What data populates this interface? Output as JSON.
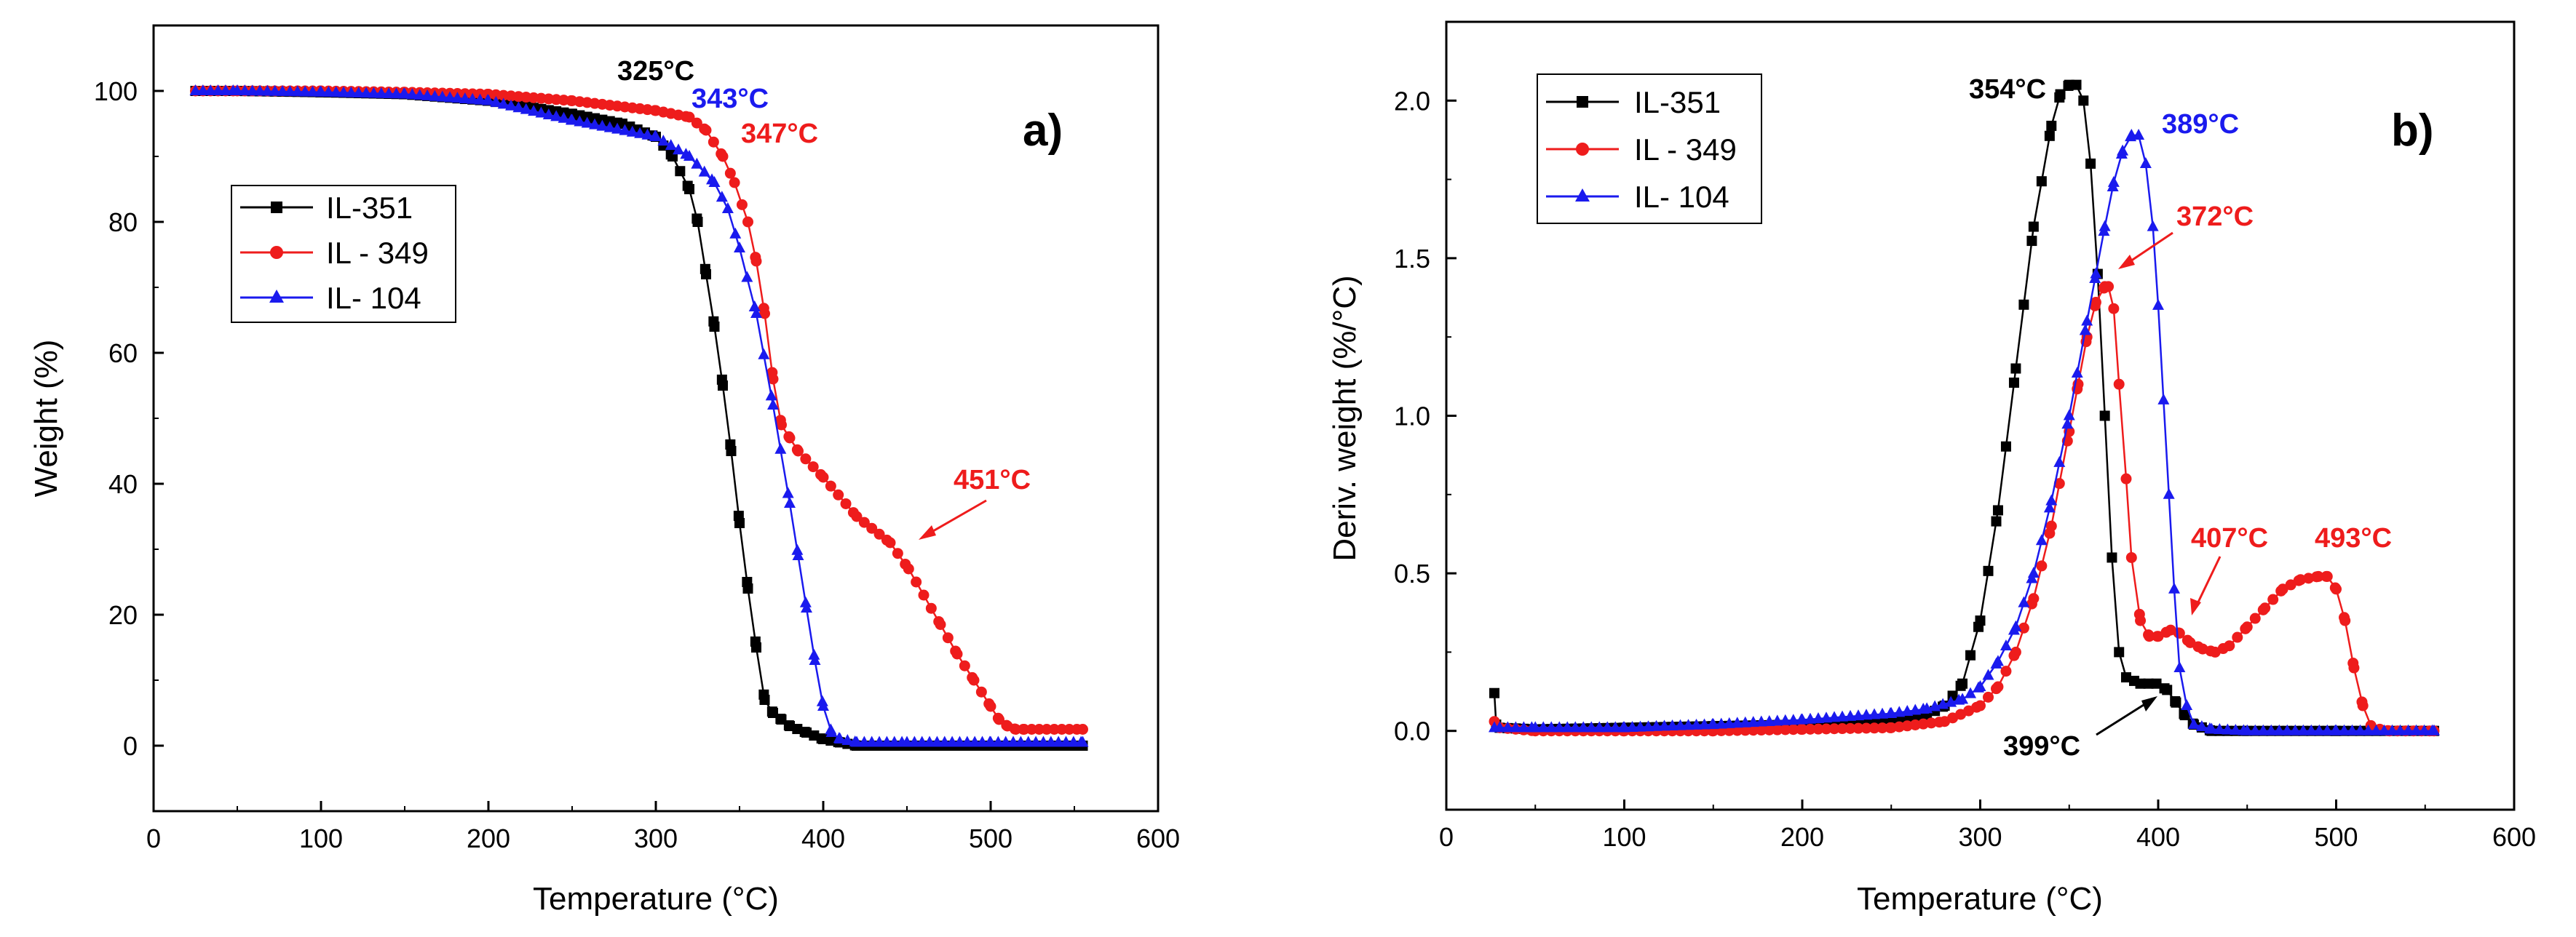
{
  "chart_data": [
    {
      "type": "scatter",
      "id": "a",
      "panel_label": "a)",
      "xlabel": "Temperature (°C)",
      "ylabel": "Weight (%)",
      "xlim": [
        0,
        600
      ],
      "ylim": [
        -10,
        110
      ],
      "xticks": [
        0,
        100,
        200,
        300,
        400,
        500,
        600
      ],
      "yticks": [
        0,
        20,
        40,
        60,
        80,
        100
      ],
      "legend_position": "middle-left",
      "series": [
        {
          "name": "IL-351",
          "color": "#000000",
          "marker": "square",
          "x": [
            25,
            50,
            100,
            150,
            200,
            250,
            280,
            300,
            310,
            320,
            325,
            330,
            335,
            340,
            345,
            350,
            355,
            360,
            365,
            370,
            375,
            380,
            390,
            400,
            410,
            420,
            450,
            500,
            555
          ],
          "y": [
            100,
            100,
            99.8,
            99.5,
            98.5,
            96.5,
            95,
            93,
            90,
            85,
            80,
            72,
            64,
            55,
            45,
            34,
            24,
            15,
            7,
            5,
            4,
            3,
            2,
            1,
            0.5,
            0,
            0,
            0,
            0
          ]
        },
        {
          "name": "IL - 349",
          "color": "#ee1c1c",
          "marker": "circle",
          "x": [
            25,
            50,
            100,
            150,
            200,
            250,
            300,
            320,
            330,
            340,
            347,
            355,
            360,
            365,
            370,
            375,
            380,
            385,
            400,
            420,
            440,
            451,
            460,
            470,
            480,
            490,
            500,
            505,
            510,
            515,
            520,
            555
          ],
          "y": [
            100,
            100,
            100,
            99.8,
            99.5,
            98.5,
            97,
            96,
            94,
            90,
            86,
            80,
            74,
            66,
            56,
            49,
            47,
            45,
            41,
            35,
            31,
            27,
            23,
            18.5,
            14,
            10,
            6,
            4,
            3,
            2.5,
            2.5,
            2.5
          ]
        },
        {
          "name": "IL- 104",
          "color": "#1a1aee",
          "marker": "triangle",
          "x": [
            25,
            50,
            100,
            150,
            200,
            250,
            300,
            320,
            335,
            343,
            350,
            360,
            370,
            380,
            385,
            390,
            395,
            400,
            405,
            410,
            420,
            450,
            500,
            555
          ],
          "y": [
            100,
            100,
            99.8,
            99.5,
            98.5,
            95.5,
            93,
            90,
            86,
            82,
            76,
            66,
            52,
            37,
            29,
            21,
            13,
            6,
            2,
            1,
            0.5,
            0.5,
            0.5,
            0.5
          ]
        }
      ],
      "annotations": [
        {
          "text": "325°C",
          "color": "#000000"
        },
        {
          "text": "343°C",
          "color": "#1a1aee"
        },
        {
          "text": "347°C",
          "color": "#ee1c1c"
        },
        {
          "text": "451°C",
          "color": "#ee1c1c"
        }
      ]
    },
    {
      "type": "scatter",
      "id": "b",
      "panel_label": "b)",
      "xlabel": "Temperature (°C)",
      "ylabel": "Deriv. weight (%/°C)",
      "xlim": [
        0,
        600
      ],
      "ylim": [
        -0.25,
        2.25
      ],
      "xticks": [
        0,
        100,
        200,
        300,
        400,
        500,
        600
      ],
      "yticks": [
        0.0,
        0.5,
        1.0,
        1.5,
        2.0
      ],
      "ytick_labels": [
        "0.0",
        "0.5",
        "1.0",
        "1.5",
        "2.0"
      ],
      "legend_position": "top-left",
      "series": [
        {
          "name": "IL-351",
          "color": "#000000",
          "marker": "square",
          "x": [
            27,
            28,
            30,
            50,
            100,
            150,
            200,
            250,
            270,
            280,
            290,
            300,
            310,
            320,
            330,
            340,
            345,
            350,
            354,
            358,
            362,
            366,
            370,
            374,
            378,
            382,
            390,
            399,
            405,
            410,
            415,
            420,
            430,
            450,
            500,
            555
          ],
          "y": [
            0.12,
            0.02,
            0.01,
            0.005,
            0.01,
            0.015,
            0.02,
            0.04,
            0.05,
            0.08,
            0.15,
            0.35,
            0.7,
            1.15,
            1.6,
            1.92,
            2.02,
            2.05,
            2.05,
            2.0,
            1.8,
            1.45,
            1.0,
            0.55,
            0.25,
            0.17,
            0.15,
            0.15,
            0.13,
            0.09,
            0.05,
            0.02,
            0.0,
            0.0,
            0.0,
            0.0
          ]
        },
        {
          "name": "IL - 349",
          "color": "#ee1c1c",
          "marker": "circle",
          "x": [
            27,
            30,
            50,
            100,
            150,
            200,
            250,
            280,
            300,
            310,
            320,
            330,
            340,
            350,
            355,
            360,
            365,
            370,
            372,
            375,
            378,
            382,
            385,
            390,
            395,
            400,
            407,
            412,
            418,
            425,
            432,
            440,
            450,
            460,
            470,
            480,
            490,
            495,
            500,
            505,
            510,
            515,
            520,
            530,
            555
          ],
          "y": [
            0.03,
            0.01,
            0.0,
            0.0,
            0.0,
            0.005,
            0.01,
            0.03,
            0.08,
            0.14,
            0.25,
            0.42,
            0.65,
            0.95,
            1.1,
            1.25,
            1.36,
            1.41,
            1.41,
            1.34,
            1.1,
            0.8,
            0.55,
            0.35,
            0.3,
            0.3,
            0.32,
            0.31,
            0.28,
            0.26,
            0.25,
            0.27,
            0.33,
            0.39,
            0.45,
            0.48,
            0.49,
            0.49,
            0.45,
            0.35,
            0.2,
            0.08,
            0.01,
            0.0,
            0.0
          ]
        },
        {
          "name": "IL- 104",
          "color": "#1a1aee",
          "marker": "triangle",
          "x": [
            27,
            30,
            50,
            100,
            150,
            200,
            250,
            270,
            290,
            300,
            310,
            320,
            330,
            340,
            350,
            360,
            365,
            370,
            375,
            380,
            385,
            389,
            393,
            397,
            400,
            403,
            406,
            409,
            412,
            416,
            420,
            430,
            450,
            500,
            555
          ],
          "y": [
            0.01,
            0.01,
            0.01,
            0.01,
            0.02,
            0.035,
            0.055,
            0.07,
            0.1,
            0.14,
            0.22,
            0.33,
            0.5,
            0.73,
            1.0,
            1.3,
            1.45,
            1.6,
            1.74,
            1.84,
            1.89,
            1.89,
            1.8,
            1.6,
            1.35,
            1.05,
            0.75,
            0.45,
            0.2,
            0.08,
            0.02,
            0.005,
            0.0,
            0.0,
            0.0
          ]
        }
      ],
      "annotations": [
        {
          "text": "354°C",
          "color": "#000000"
        },
        {
          "text": "389°C",
          "color": "#1a1aee"
        },
        {
          "text": "372°C",
          "color": "#ee1c1c"
        },
        {
          "text": "407°C",
          "color": "#ee1c1c"
        },
        {
          "text": "493°C",
          "color": "#ee1c1c"
        },
        {
          "text": "399°C",
          "color": "#000000"
        }
      ]
    }
  ]
}
